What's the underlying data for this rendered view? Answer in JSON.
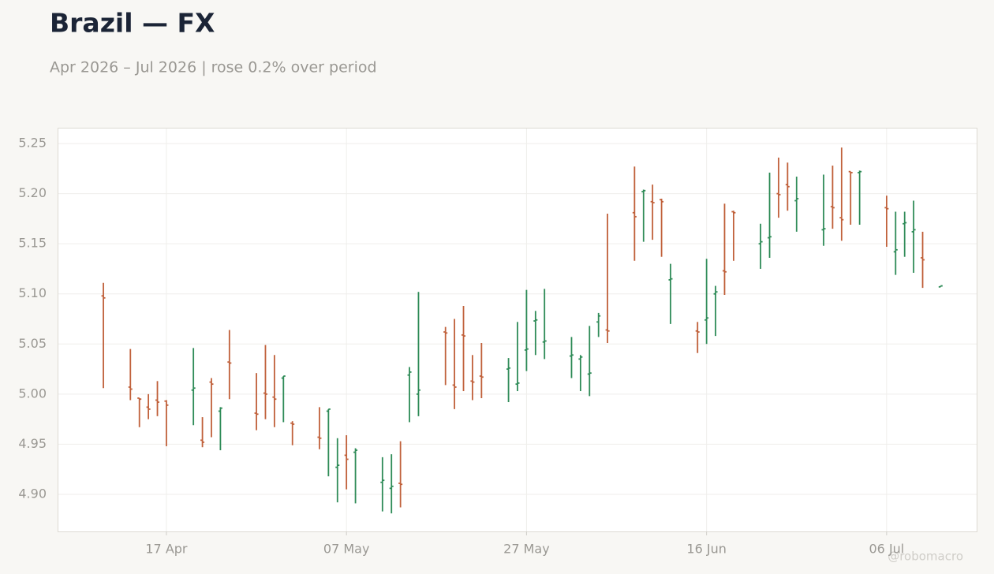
{
  "chart_data": {
    "type": "ohlc",
    "title": "Brazil — FX",
    "subtitle": "Apr 2026 – Jul 2026 | rose 0.2% over period",
    "watermark": "@robomacro",
    "x": [
      "2026-04-10",
      "2026-04-13",
      "2026-04-14",
      "2026-04-15",
      "2026-04-16",
      "2026-04-17",
      "2026-04-20",
      "2026-04-21",
      "2026-04-22",
      "2026-04-23",
      "2026-04-24",
      "2026-04-27",
      "2026-04-28",
      "2026-04-29",
      "2026-04-30",
      "2026-05-01",
      "2026-05-04",
      "2026-05-05",
      "2026-05-06",
      "2026-05-07",
      "2026-05-08",
      "2026-05-11",
      "2026-05-12",
      "2026-05-13",
      "2026-05-14",
      "2026-05-15",
      "2026-05-18",
      "2026-05-19",
      "2026-05-20",
      "2026-05-21",
      "2026-05-22",
      "2026-05-25",
      "2026-05-26",
      "2026-05-27",
      "2026-05-28",
      "2026-05-29",
      "2026-06-01",
      "2026-06-02",
      "2026-06-03",
      "2026-06-04",
      "2026-06-05",
      "2026-06-08",
      "2026-06-09",
      "2026-06-10",
      "2026-06-11",
      "2026-06-12",
      "2026-06-15",
      "2026-06-16",
      "2026-06-17",
      "2026-06-18",
      "2026-06-19",
      "2026-06-22",
      "2026-06-23",
      "2026-06-24",
      "2026-06-25",
      "2026-06-26",
      "2026-06-29",
      "2026-06-30",
      "2026-07-01",
      "2026-07-02",
      "2026-07-03",
      "2026-07-06",
      "2026-07-07",
      "2026-07-08",
      "2026-07-09",
      "2026-07-10",
      "2026-07-12"
    ],
    "open": [
      5.098,
      5.007,
      4.996,
      4.987,
      4.994,
      4.993,
      5.004,
      4.954,
      5.012,
      4.983,
      5.032,
      4.981,
      5.001,
      4.997,
      5.016,
      4.971,
      4.957,
      4.983,
      4.927,
      4.939,
      4.942,
      4.912,
      4.906,
      4.911,
      5.019,
      5.0,
      5.062,
      5.009,
      5.059,
      5.013,
      5.018,
      5.025,
      5.01,
      5.044,
      5.073,
      5.052,
      5.038,
      5.035,
      5.02,
      5.072,
      5.064,
      5.181,
      5.202,
      5.192,
      5.194,
      5.114,
      5.063,
      5.074,
      5.1,
      5.123,
      5.182,
      5.15,
      5.156,
      5.2,
      5.209,
      5.193,
      5.164,
      5.187,
      5.176,
      5.222,
      5.221,
      5.186,
      5.142,
      5.17,
      5.162,
      5.136,
      5.107
    ],
    "high": [
      5.111,
      5.045,
      4.996,
      5.0,
      5.013,
      4.994,
      5.046,
      4.977,
      5.016,
      4.987,
      5.064,
      5.021,
      5.049,
      5.039,
      5.018,
      4.973,
      4.987,
      4.985,
      4.956,
      4.959,
      4.946,
      4.937,
      4.94,
      4.953,
      5.027,
      5.102,
      5.067,
      5.075,
      5.088,
      5.039,
      5.051,
      5.036,
      5.072,
      5.104,
      5.083,
      5.105,
      5.057,
      5.039,
      5.068,
      5.081,
      5.18,
      5.227,
      5.204,
      5.209,
      5.195,
      5.13,
      5.072,
      5.135,
      5.108,
      5.19,
      5.183,
      5.17,
      5.221,
      5.236,
      5.231,
      5.217,
      5.219,
      5.228,
      5.246,
      5.222,
      5.223,
      5.198,
      5.182,
      5.182,
      5.193,
      5.162,
      5.108
    ],
    "low": [
      5.006,
      4.994,
      4.967,
      4.975,
      4.978,
      4.948,
      4.969,
      4.947,
      4.957,
      4.944,
      4.995,
      4.964,
      4.975,
      4.967,
      4.972,
      4.949,
      4.945,
      4.918,
      4.892,
      4.905,
      4.891,
      4.883,
      4.881,
      4.887,
      4.972,
      4.978,
      5.009,
      4.985,
      5.003,
      4.994,
      4.996,
      4.992,
      5.003,
      5.023,
      5.039,
      5.035,
      5.016,
      5.003,
      4.998,
      5.057,
      5.051,
      5.133,
      5.152,
      5.154,
      5.137,
      5.07,
      5.041,
      5.05,
      5.058,
      5.099,
      5.133,
      5.125,
      5.136,
      5.176,
      5.183,
      5.162,
      5.148,
      5.165,
      5.153,
      5.169,
      5.169,
      5.147,
      5.119,
      5.137,
      5.121,
      5.106,
      5.107
    ],
    "close": [
      5.096,
      5.005,
      4.995,
      4.985,
      4.992,
      4.989,
      5.006,
      4.952,
      5.01,
      4.986,
      5.031,
      4.98,
      5.0,
      4.995,
      5.018,
      4.97,
      4.956,
      4.985,
      4.929,
      4.935,
      4.944,
      4.914,
      4.908,
      4.91,
      5.022,
      5.004,
      5.061,
      5.007,
      5.058,
      5.012,
      5.017,
      5.026,
      5.011,
      5.045,
      5.074,
      5.053,
      5.039,
      5.037,
      5.021,
      5.078,
      5.063,
      5.177,
      5.203,
      5.191,
      5.192,
      5.115,
      5.062,
      5.076,
      5.102,
      5.122,
      5.181,
      5.152,
      5.157,
      5.199,
      5.207,
      5.195,
      5.165,
      5.186,
      5.174,
      5.221,
      5.222,
      5.185,
      5.144,
      5.171,
      5.164,
      5.134,
      5.108
    ],
    "up_color": "#2e8b57",
    "down_color": "#c0603a",
    "xlim": [
      "2026-04-05",
      "2026-07-16"
    ],
    "xticks": [
      {
        "value": "2026-04-17",
        "label": "17 Apr"
      },
      {
        "value": "2026-05-07",
        "label": "07 May"
      },
      {
        "value": "2026-05-27",
        "label": "27 May"
      },
      {
        "value": "2026-06-16",
        "label": "16 Jun"
      },
      {
        "value": "2026-07-06",
        "label": "06 Jul"
      }
    ],
    "ylim": [
      4.863,
      5.265
    ],
    "yticks": [
      {
        "value": 4.9,
        "label": "4.90"
      },
      4.95,
      {
        "value": 5,
        "label": "5.00"
      },
      5.05,
      {
        "value": 5.1,
        "label": "5.10"
      },
      5.15,
      {
        "value": 5.2,
        "label": "5.20"
      },
      5.25
    ],
    "grid": true
  }
}
